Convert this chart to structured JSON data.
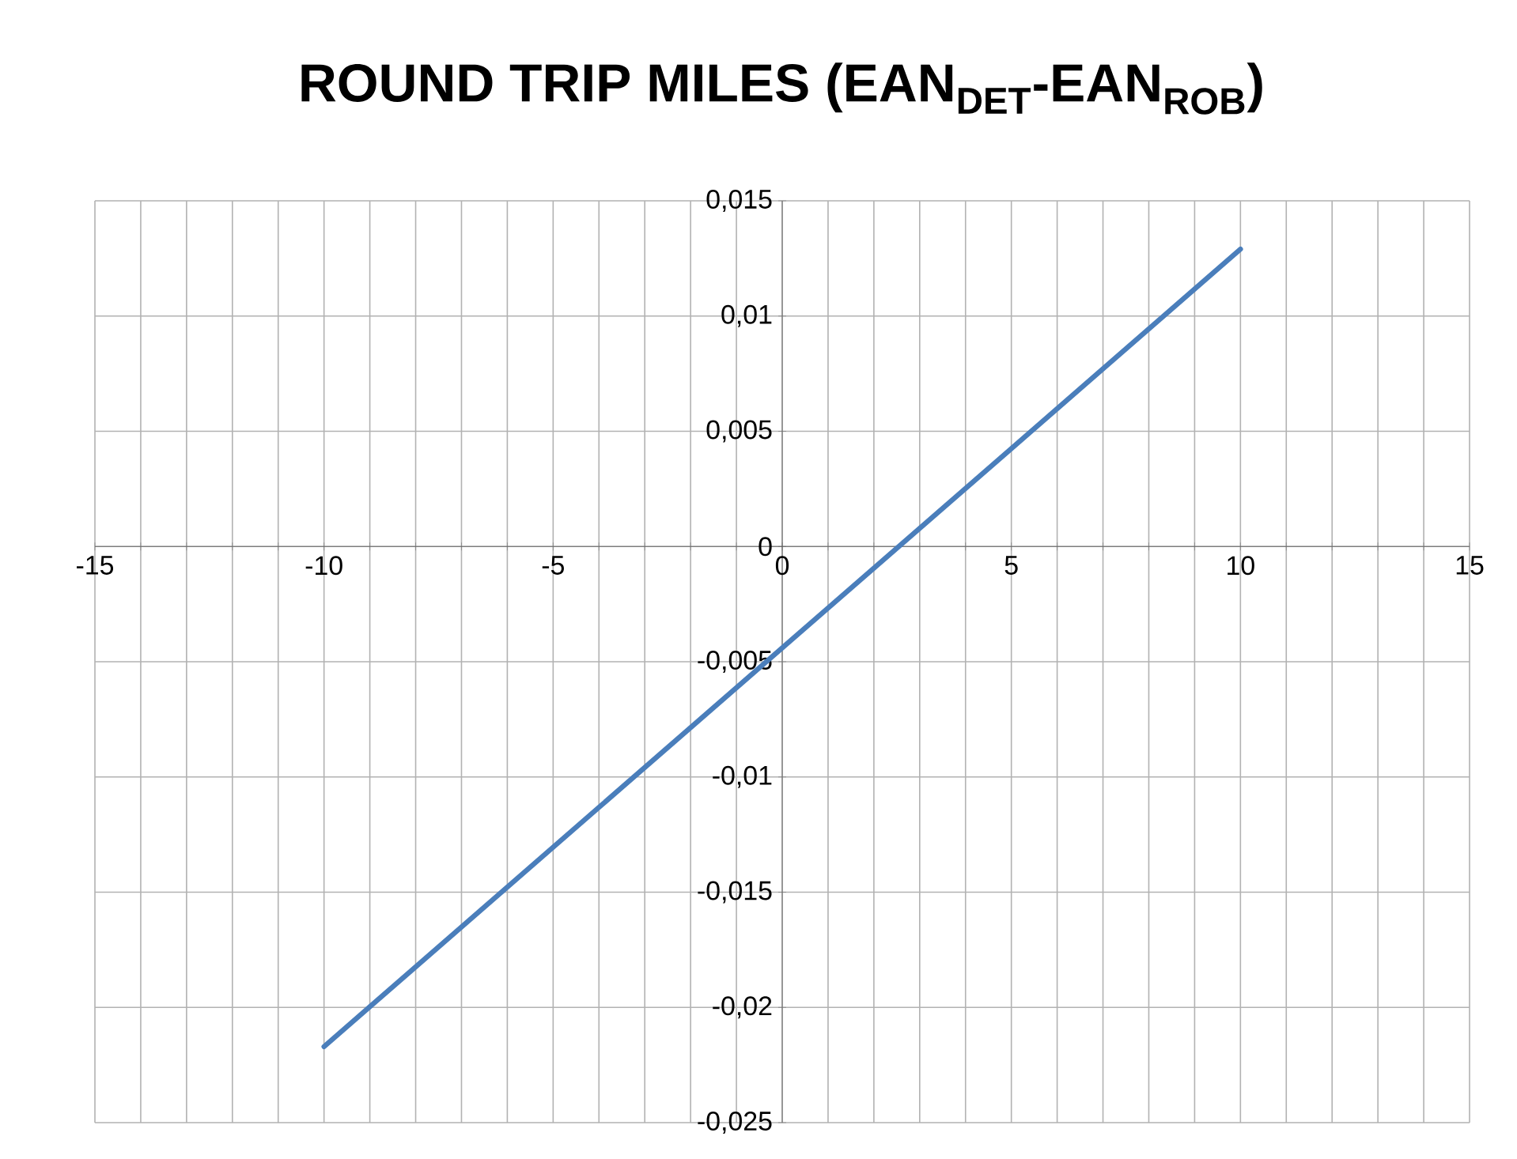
{
  "chart_data": {
    "type": "line",
    "title": "ROUND TRIP MILES (EAN$_{DET}$-EAN$_{ROB}$)",
    "x": [
      -10,
      10
    ],
    "series": [
      {
        "color": "#4a7ebb",
        "values": [
          -0.0217,
          0.0129
        ]
      }
    ],
    "xlim": [
      -15,
      15
    ],
    "ylim": [
      -0.025,
      0.015
    ],
    "xticks": [
      -15,
      {
        "value": -14,
        "label": null
      },
      {
        "value": -13,
        "label": null
      },
      {
        "value": -12,
        "label": null
      },
      {
        "value": -11,
        "label": null
      },
      -10,
      {
        "value": -9,
        "label": null
      },
      {
        "value": -8,
        "label": null
      },
      {
        "value": -7,
        "label": null
      },
      {
        "value": -6,
        "label": null
      },
      -5,
      {
        "value": -4,
        "label": null
      },
      {
        "value": -3,
        "label": null
      },
      {
        "value": -2,
        "label": null
      },
      {
        "value": -1,
        "label": null
      },
      0,
      {
        "value": 1,
        "label": null
      },
      {
        "value": 2,
        "label": null
      },
      {
        "value": 3,
        "label": null
      },
      {
        "value": 4,
        "label": null
      },
      5,
      {
        "value": 6,
        "label": null
      },
      {
        "value": 7,
        "label": null
      },
      {
        "value": 8,
        "label": null
      },
      {
        "value": 9,
        "label": null
      },
      10,
      {
        "value": 11,
        "label": null
      },
      {
        "value": 12,
        "label": null
      },
      {
        "value": 13,
        "label": null
      },
      {
        "value": 14,
        "label": null
      },
      15
    ],
    "yticks": [
      {
        "value": -0.025,
        "label": "-0,025"
      },
      {
        "value": -0.02,
        "label": "-0,02"
      },
      {
        "value": -0.015,
        "label": "-0,015"
      },
      {
        "value": -0.01,
        "label": "-0,01"
      },
      {
        "value": -0.005,
        "label": "-0,005"
      },
      0,
      {
        "value": 0.005,
        "label": "0,005"
      },
      {
        "value": 0.01,
        "label": "0,01"
      },
      {
        "value": 0.015,
        "label": "0,015"
      }
    ],
    "grid": true
  }
}
